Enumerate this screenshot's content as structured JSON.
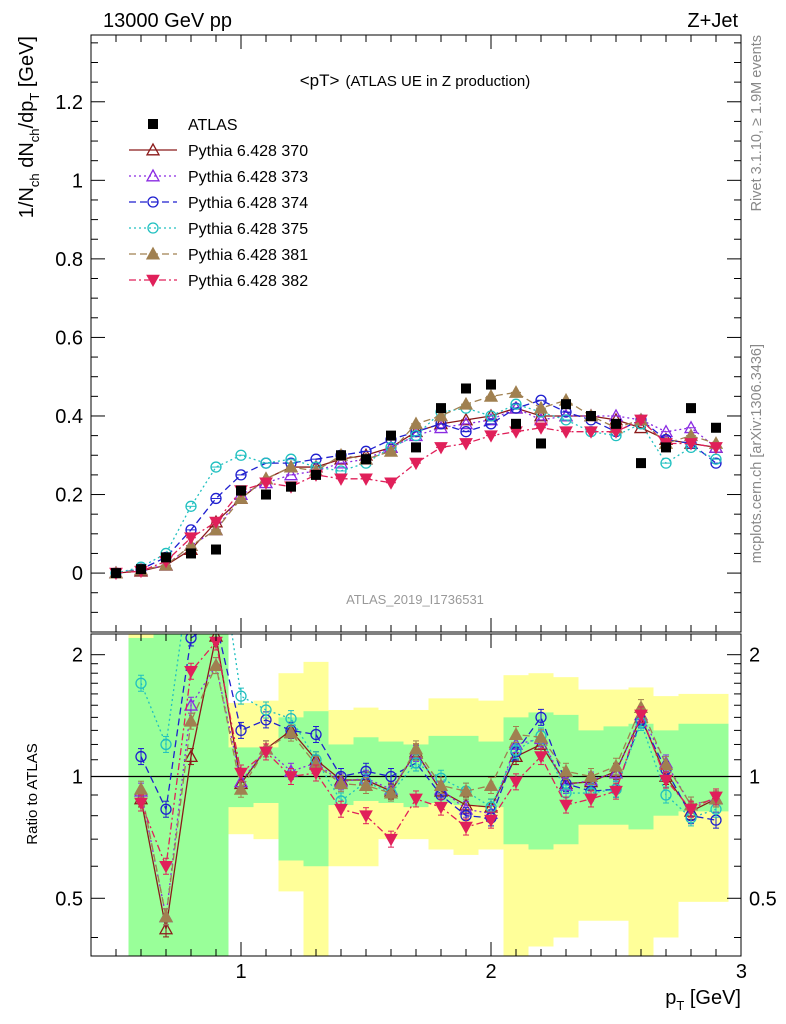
{
  "header": {
    "left": "13000 GeV pp",
    "right": "Z+Jet"
  },
  "side_text": {
    "top": "Rivet 3.1.10, ≥ 1.9M events",
    "bottom": "mcplots.cern.ch [arXiv:1306.3436]"
  },
  "watermark": "ATLAS_2019_I1736531",
  "title_parts": {
    "main": "<pT>",
    "sub": "(ATLAS UE in Z production)"
  },
  "ylabel_parts": {
    "a": "1/N",
    "a_sub": "ch",
    "b": " dN",
    "b_sub": "ch",
    "c": "/dp",
    "c_sub": "T",
    "d": " [GeV]"
  },
  "xlabel_parts": {
    "a": "p",
    "a_sub": "T",
    "b": " [GeV]"
  },
  "ratio_ylabel": "Ratio to ATLAS",
  "chart_data": [
    {
      "type": "scatter",
      "panel": "main",
      "title": "<pT> (ATLAS UE in Z production)",
      "xlabel": "p_T [GeV]",
      "ylabel": "1/N_ch dN_ch/dp_T [GeV]",
      "xlim": [
        0.4,
        3.0
      ],
      "ylim": [
        -0.15,
        1.37
      ],
      "yticks": [
        0,
        0.2,
        0.4,
        0.6,
        0.8,
        1,
        1.2
      ],
      "ytick_labels": [
        "0",
        "0.2",
        "0.4",
        "0.6",
        "0.8",
        "1",
        "1.2"
      ],
      "legend_position": "top-left",
      "x": [
        0.5,
        0.6,
        0.7,
        0.8,
        0.9,
        1.0,
        1.1,
        1.2,
        1.3,
        1.4,
        1.5,
        1.6,
        1.7,
        1.8,
        1.9,
        2.0,
        2.1,
        2.2,
        2.3,
        2.4,
        2.5,
        2.6,
        2.7,
        2.8,
        2.9
      ],
      "data": {
        "name": "ATLAS",
        "color": "#000000",
        "marker": "square",
        "values": [
          0.0,
          0.01,
          0.04,
          0.05,
          0.06,
          0.21,
          0.2,
          0.22,
          0.25,
          0.3,
          0.29,
          0.35,
          0.32,
          0.42,
          0.47,
          0.48,
          0.38,
          0.33,
          0.43,
          0.4,
          0.38,
          0.28,
          0.32,
          0.42,
          0.37
        ]
      },
      "series": [
        {
          "name": "Pythia 6.428 370",
          "color": "#8b1a1a",
          "marker": "triangle-open",
          "dash": "",
          "values": [
            0.0,
            0.005,
            0.02,
            0.06,
            0.13,
            0.19,
            0.24,
            0.27,
            0.27,
            0.29,
            0.3,
            0.32,
            0.36,
            0.38,
            0.39,
            0.4,
            0.42,
            0.4,
            0.4,
            0.4,
            0.39,
            0.37,
            0.34,
            0.33,
            0.32
          ]
        },
        {
          "name": "Pythia 6.428 373",
          "color": "#8a2be2",
          "marker": "triangle-open",
          "dash": "2,3",
          "values": [
            0.0,
            0.008,
            0.02,
            0.07,
            0.11,
            0.2,
            0.23,
            0.25,
            0.26,
            0.28,
            0.29,
            0.32,
            0.35,
            0.37,
            0.38,
            0.39,
            0.42,
            0.39,
            0.4,
            0.4,
            0.4,
            0.39,
            0.36,
            0.37,
            0.32
          ]
        },
        {
          "name": "Pythia 6.428 374",
          "color": "#1f1fcf",
          "marker": "circle-open",
          "dash": "7,4",
          "values": [
            0.0,
            0.01,
            0.04,
            0.11,
            0.19,
            0.25,
            0.28,
            0.28,
            0.29,
            0.3,
            0.31,
            0.34,
            0.36,
            0.38,
            0.36,
            0.38,
            0.42,
            0.44,
            0.41,
            0.39,
            0.36,
            0.39,
            0.34,
            0.33,
            0.28
          ]
        },
        {
          "name": "Pythia 6.428 375",
          "color": "#20c0c0",
          "marker": "circle-open",
          "dash": "2,3",
          "values": [
            0.0,
            0.015,
            0.05,
            0.17,
            0.27,
            0.3,
            0.28,
            0.29,
            0.27,
            0.26,
            0.28,
            0.32,
            0.35,
            0.41,
            0.42,
            0.4,
            0.43,
            0.41,
            0.39,
            0.36,
            0.35,
            0.38,
            0.28,
            0.32,
            0.29
          ]
        },
        {
          "name": "Pythia 6.428 381",
          "color": "#a08050",
          "marker": "triangle-filled",
          "dash": "7,4",
          "values": [
            0.0,
            0.008,
            0.02,
            0.07,
            0.11,
            0.19,
            0.24,
            0.27,
            0.26,
            0.3,
            0.29,
            0.31,
            0.38,
            0.4,
            0.43,
            0.45,
            0.46,
            0.42,
            0.44,
            0.4,
            0.37,
            0.39,
            0.33,
            0.35,
            0.33
          ]
        },
        {
          "name": "Pythia 6.428 382",
          "color": "#e0205a",
          "marker": "triangle-down-filled",
          "dash": "7,3,2,3",
          "values": [
            0.0,
            0.005,
            0.03,
            0.09,
            0.13,
            0.21,
            0.23,
            0.22,
            0.25,
            0.24,
            0.24,
            0.23,
            0.28,
            0.32,
            0.33,
            0.35,
            0.36,
            0.37,
            0.36,
            0.36,
            0.36,
            0.39,
            0.33,
            0.33,
            0.32
          ]
        }
      ]
    },
    {
      "type": "line",
      "panel": "ratio",
      "ylabel": "Ratio to ATLAS",
      "xlabel": "p_T [GeV]",
      "xlim": [
        0.4,
        3.0
      ],
      "ylim": [
        0.36,
        2.25
      ],
      "scale": "log",
      "yticks": [
        0.5,
        1,
        2
      ],
      "ytick_labels": [
        "0.5",
        "1",
        "2"
      ],
      "xticks": [
        1,
        2,
        3
      ],
      "xtick_labels": [
        "1",
        "2",
        "3"
      ],
      "reference": 1.0,
      "band_edges": [
        0.55,
        0.65,
        0.75,
        0.85,
        0.95,
        1.05,
        1.15,
        1.25,
        1.35,
        1.45,
        1.55,
        1.65,
        1.75,
        1.85,
        1.95,
        2.05,
        2.15,
        2.25,
        2.35,
        2.45,
        2.55,
        2.65,
        2.75,
        2.85,
        2.95
      ],
      "band_x": [
        0.6,
        0.7,
        0.8,
        0.9,
        1.0,
        1.1,
        1.2,
        1.3,
        1.4,
        1.5,
        1.6,
        1.7,
        1.8,
        1.9,
        2.0,
        2.1,
        2.2,
        2.3,
        2.4,
        2.5,
        2.6,
        2.7,
        2.8,
        2.9
      ],
      "stat_band": {
        "color": "#99ff99",
        "lo": [
          0.35,
          0.35,
          0.35,
          0.35,
          0.84,
          0.86,
          0.62,
          0.6,
          0.85,
          0.87,
          0.86,
          0.84,
          0.86,
          0.85,
          0.84,
          0.68,
          0.66,
          0.68,
          0.76,
          0.76,
          0.74,
          0.8,
          0.82,
          0.82
        ],
        "hi": [
          2.2,
          2.3,
          2.3,
          2.3,
          1.18,
          1.18,
          1.4,
          1.45,
          1.2,
          1.25,
          1.22,
          1.2,
          1.26,
          1.26,
          1.22,
          1.4,
          1.44,
          1.42,
          1.3,
          1.33,
          1.35,
          1.3,
          1.35,
          1.35
        ]
      },
      "syst_band": {
        "color": "#ffff99",
        "lo": [
          0.35,
          0.35,
          0.35,
          0.35,
          0.72,
          0.7,
          0.52,
          0.35,
          0.6,
          0.6,
          0.7,
          0.7,
          0.66,
          0.64,
          0.66,
          0.35,
          0.38,
          0.4,
          0.44,
          0.44,
          0.35,
          0.4,
          0.49,
          0.49
        ],
        "hi": [
          2.5,
          2.5,
          2.5,
          2.5,
          1.52,
          1.54,
          1.8,
          1.92,
          1.46,
          1.48,
          1.46,
          1.46,
          1.56,
          1.56,
          1.54,
          1.78,
          1.8,
          1.76,
          1.64,
          1.64,
          1.66,
          1.58,
          1.6,
          1.6
        ]
      },
      "x": [
        0.6,
        0.7,
        0.8,
        0.9,
        1.0,
        1.1,
        1.2,
        1.3,
        1.4,
        1.5,
        1.6,
        1.7,
        1.8,
        1.9,
        2.0,
        2.1,
        2.2,
        2.3,
        2.4,
        2.5,
        2.6,
        2.7,
        2.8,
        2.9
      ],
      "series": [
        {
          "name": "Pythia 6.428 370",
          "color": "#8b1a1a",
          "marker": "triangle-open",
          "dash": "",
          "values": [
            0.88,
            0.42,
            1.12,
            2.22,
            0.96,
            1.17,
            1.3,
            1.1,
            0.98,
            0.98,
            0.92,
            1.15,
            0.92,
            0.85,
            0.84,
            1.12,
            1.2,
            0.96,
            0.97,
            1.03,
            1.4,
            1.0,
            0.82,
            0.88
          ]
        },
        {
          "name": "Pythia 6.428 373",
          "color": "#8a2be2",
          "marker": "triangle-open",
          "dash": "2,3",
          "values": [
            0.92,
            0.45,
            1.5,
            1.88,
            0.97,
            1.17,
            1.03,
            1.08,
            0.97,
            0.99,
            0.93,
            1.14,
            0.93,
            0.83,
            0.81,
            1.2,
            1.24,
            0.95,
            0.98,
            1.02,
            1.42,
            1.08,
            0.85,
            0.88
          ]
        },
        {
          "name": "Pythia 6.428 374",
          "color": "#1f1fcf",
          "marker": "circle-open",
          "dash": "7,4",
          "values": [
            1.12,
            0.83,
            2.2,
            2.4,
            1.3,
            1.38,
            1.3,
            1.27,
            1.0,
            1.03,
            1.0,
            1.08,
            0.9,
            0.8,
            0.79,
            1.15,
            1.4,
            0.96,
            0.92,
            0.93,
            1.38,
            1.04,
            0.8,
            0.78
          ]
        },
        {
          "name": "Pythia 6.428 375",
          "color": "#20c0c0",
          "marker": "circle-open",
          "dash": "2,3",
          "values": [
            1.7,
            1.2,
            3.3,
            4.2,
            1.58,
            1.46,
            1.39,
            1.1,
            0.87,
            0.97,
            0.91,
            1.08,
            0.99,
            0.92,
            0.84,
            1.16,
            1.26,
            0.91,
            0.91,
            0.93,
            1.36,
            0.9,
            0.79,
            0.83
          ]
        },
        {
          "name": "Pythia 6.428 381",
          "color": "#a08050",
          "marker": "triangle-filled",
          "dash": "7,4",
          "values": [
            0.93,
            0.45,
            1.37,
            1.88,
            0.93,
            1.17,
            1.28,
            1.07,
            0.96,
            0.95,
            0.91,
            1.17,
            0.95,
            0.92,
            0.95,
            1.27,
            1.25,
            1.03,
            1.0,
            1.06,
            1.48,
            1.07,
            0.85,
            0.88
          ]
        },
        {
          "name": "Pythia 6.428 382",
          "color": "#e0205a",
          "marker": "triangle-down-filled",
          "dash": "7,3,2,3",
          "values": [
            0.86,
            0.6,
            1.82,
            2.15,
            1.02,
            1.15,
            1.0,
            1.02,
            0.83,
            0.8,
            0.7,
            0.88,
            0.84,
            0.75,
            0.78,
            0.97,
            1.12,
            0.85,
            0.88,
            0.92,
            1.42,
            0.98,
            0.83,
            0.89
          ]
        }
      ]
    }
  ]
}
